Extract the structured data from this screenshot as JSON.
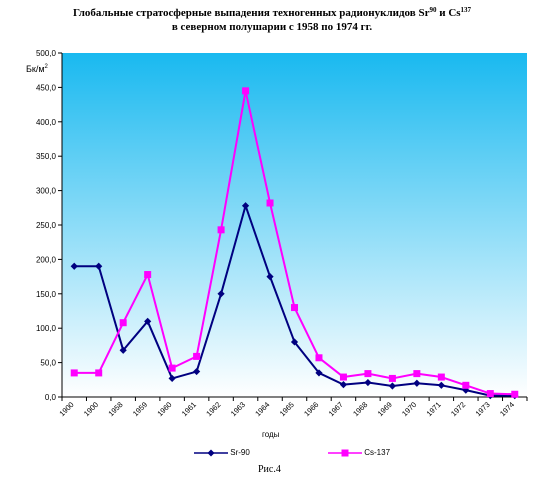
{
  "title_line1": "Глобальные стратосферные выпадения техногенных радионуклидов Sr",
  "title_sr_sup": "90",
  "title_mid": " и Cs",
  "title_cs_sup": "137",
  "title_line2": "в северном полушарии с 1958 по 1974 гг.",
  "ylabel_main": "Бк/м",
  "ylabel_sup": "2",
  "xlabel": "годы",
  "caption": "Рис.4",
  "colors": {
    "sr90": "#000080",
    "cs137": "#ff00ff",
    "bg_top": "#19b9f0",
    "bg_bottom": "#ffffff"
  },
  "chart_data": {
    "type": "line",
    "categories": [
      "1900",
      "1900",
      "1958",
      "1959",
      "1960",
      "1961",
      "1962",
      "1963",
      "1964",
      "1965",
      "1966",
      "1967",
      "1968",
      "1969",
      "1970",
      "1971",
      "1972",
      "1973",
      "1974"
    ],
    "series": [
      {
        "name": "Sr-90",
        "marker": "diamond",
        "values": [
          190,
          190,
          68,
          110,
          27,
          37,
          150,
          278,
          175,
          80,
          35,
          18,
          21,
          16,
          20,
          17,
          10,
          2,
          2
        ]
      },
      {
        "name": "Cs-137",
        "marker": "square",
        "values": [
          35,
          35,
          108,
          178,
          42,
          59,
          243,
          445,
          282,
          130,
          57,
          29,
          34,
          27,
          34,
          29,
          17,
          5,
          4
        ]
      }
    ],
    "ylim": [
      0,
      500
    ],
    "yticks": [
      "0,0",
      "50,0",
      "100,0",
      "150,0",
      "200,0",
      "250,0",
      "300,0",
      "350,0",
      "400,0",
      "450,0",
      "500,0"
    ],
    "grid": false,
    "legend": "bottom"
  }
}
